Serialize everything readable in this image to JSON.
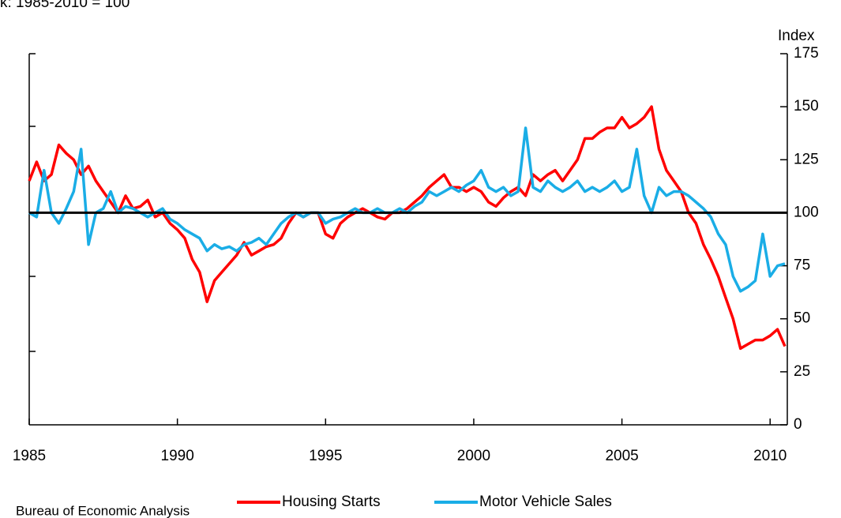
{
  "chart_data": {
    "type": "line",
    "subtitle": "k: 1985-2010 = 100",
    "y_axis_label": "Index",
    "source": "Bureau of Economic Analysis",
    "x": [
      1985,
      1985.25,
      1985.5,
      1985.75,
      1986,
      1986.25,
      1986.5,
      1986.75,
      1987,
      1987.25,
      1987.5,
      1987.75,
      1988,
      1988.25,
      1988.5,
      1988.75,
      1989,
      1989.25,
      1989.5,
      1989.75,
      1990,
      1990.25,
      1990.5,
      1990.75,
      1991,
      1991.25,
      1991.5,
      1991.75,
      1992,
      1992.25,
      1992.5,
      1992.75,
      1993,
      1993.25,
      1993.5,
      1993.75,
      1994,
      1994.25,
      1994.5,
      1994.75,
      1995,
      1995.25,
      1995.5,
      1995.75,
      1996,
      1996.25,
      1996.5,
      1996.75,
      1997,
      1997.25,
      1997.5,
      1997.75,
      1998,
      1998.25,
      1998.5,
      1998.75,
      1999,
      1999.25,
      1999.5,
      1999.75,
      2000,
      2000.25,
      2000.5,
      2000.75,
      2001,
      2001.25,
      2001.5,
      2001.75,
      2002,
      2002.25,
      2002.5,
      2002.75,
      2003,
      2003.25,
      2003.5,
      2003.75,
      2004,
      2004.25,
      2004.5,
      2004.75,
      2005,
      2005.25,
      2005.5,
      2005.75,
      2006,
      2006.25,
      2006.5,
      2006.75,
      2007,
      2007.25,
      2007.5,
      2007.75,
      2008,
      2008.25,
      2008.5,
      2008.75,
      2009,
      2009.25,
      2009.5,
      2009.75,
      2010,
      2010.25,
      2010.5
    ],
    "series": [
      {
        "name": "Housing Starts",
        "color": "#ff0000",
        "values": [
          115,
          124,
          115,
          118,
          132,
          128,
          125,
          118,
          122,
          115,
          110,
          105,
          100,
          108,
          102,
          103,
          106,
          98,
          100,
          95,
          92,
          88,
          78,
          72,
          58,
          68,
          72,
          76,
          80,
          86,
          80,
          82,
          84,
          85,
          88,
          95,
          100,
          98,
          100,
          100,
          90,
          88,
          95,
          98,
          100,
          102,
          100,
          98,
          97,
          100,
          100,
          102,
          105,
          108,
          112,
          115,
          118,
          112,
          112,
          110,
          112,
          110,
          105,
          103,
          107,
          110,
          112,
          108,
          118,
          115,
          118,
          120,
          115,
          120,
          125,
          135,
          135,
          138,
          140,
          140,
          145,
          140,
          142,
          145,
          150,
          130,
          120,
          115,
          110,
          100,
          95,
          85,
          78,
          70,
          60,
          50,
          36,
          38,
          40,
          40,
          42,
          45,
          37
        ]
      },
      {
        "name": "Motor Vehicle Sales",
        "color": "#1aade6",
        "values": [
          100,
          98,
          120,
          100,
          95,
          102,
          110,
          130,
          85,
          100,
          102,
          110,
          100,
          103,
          102,
          100,
          98,
          100,
          102,
          97,
          95,
          92,
          90,
          88,
          82,
          85,
          83,
          84,
          82,
          85,
          86,
          88,
          85,
          90,
          95,
          98,
          100,
          98,
          100,
          100,
          95,
          97,
          98,
          100,
          102,
          100,
          100,
          102,
          100,
          100,
          102,
          100,
          103,
          105,
          110,
          108,
          110,
          112,
          110,
          113,
          115,
          120,
          112,
          110,
          112,
          108,
          110,
          140,
          112,
          110,
          115,
          112,
          110,
          112,
          115,
          110,
          112,
          110,
          112,
          115,
          110,
          112,
          130,
          108,
          100,
          112,
          108,
          110,
          110,
          108,
          105,
          102,
          98,
          90,
          85,
          70,
          63,
          65,
          68,
          90,
          70,
          75,
          76
        ]
      }
    ],
    "reference_line": 100,
    "xlim": [
      1985,
      2010.58
    ],
    "xticks": [
      1985,
      1990,
      1995,
      2000,
      2005,
      2010
    ],
    "ylim": [
      0,
      175
    ],
    "yticks": [
      0,
      25,
      50,
      75,
      100,
      125,
      150,
      175
    ]
  }
}
